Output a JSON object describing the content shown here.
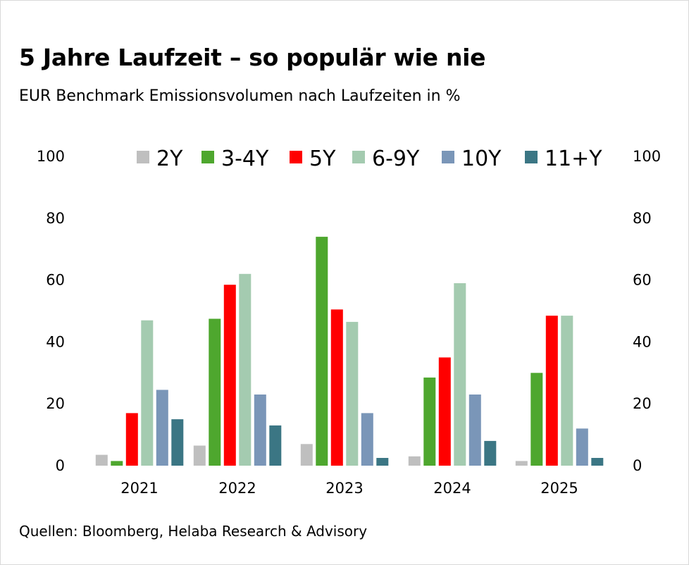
{
  "header": {
    "title": "5 Jahre Laufzeit – so populär wie nie",
    "subtitle": "EUR Benchmark Emissionsvolumen nach Laufzeiten in %"
  },
  "footer": {
    "source": "Quellen: Bloomberg, Helaba Research & Advisory"
  },
  "chart_data": {
    "type": "bar",
    "categories": [
      "2021",
      "2022",
      "2023",
      "2024",
      "2025"
    ],
    "series": [
      {
        "name": "2Y",
        "color": "#bfbfbf",
        "values": [
          3.5,
          6.5,
          7,
          3,
          1.5
        ]
      },
      {
        "name": "3-4Y",
        "color": "#4ea72e",
        "values": [
          1.5,
          47.5,
          74,
          28.5,
          30
        ]
      },
      {
        "name": "5Y",
        "color": "#ff0000",
        "values": [
          17,
          58.5,
          50.5,
          35,
          48.5
        ]
      },
      {
        "name": "6-9Y",
        "color": "#a4cbb0",
        "values": [
          47,
          62,
          46.5,
          59,
          48.5
        ]
      },
      {
        "name": "10Y",
        "color": "#7a96b8",
        "values": [
          24.5,
          23,
          17,
          23,
          12
        ]
      },
      {
        "name": "11+Y",
        "color": "#3b7684",
        "values": [
          15,
          13,
          2.5,
          8,
          2.5
        ]
      }
    ],
    "y_ticks": [
      "0",
      "20",
      "40",
      "60",
      "80",
      "100"
    ],
    "y_tick_values": [
      0,
      20,
      40,
      60,
      80,
      100
    ],
    "ylim": [
      0,
      100
    ],
    "secondary_y_axis": true,
    "legend_position": "top",
    "grid": false
  }
}
